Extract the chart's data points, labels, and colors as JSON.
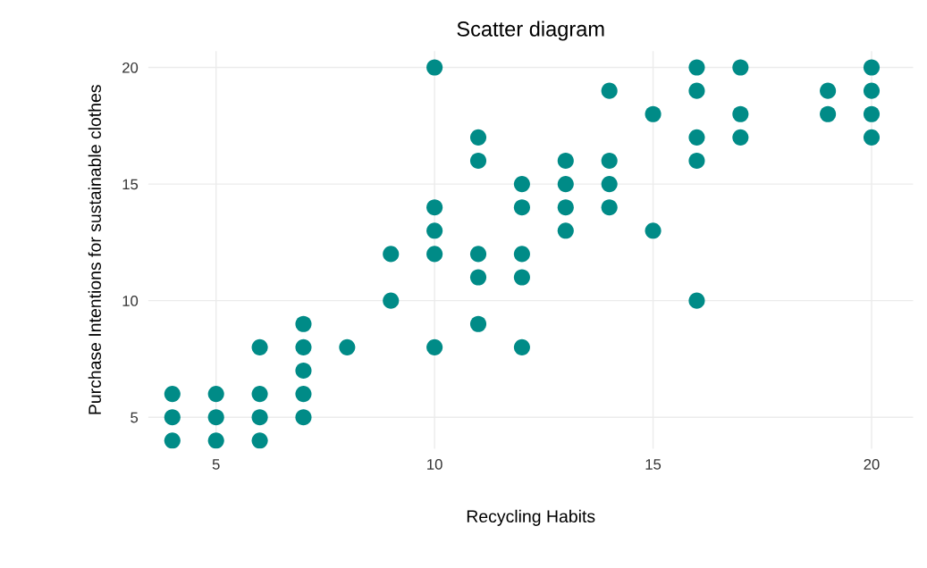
{
  "chart_data": {
    "type": "scatter",
    "title": "Scatter diagram",
    "xlabel": "Recycling Habits",
    "ylabel": "Purchase Intentions for sustainable clothes",
    "series": [
      {
        "color": "#008b87",
        "x": [
          4,
          4,
          4,
          5,
          5,
          5,
          6,
          6,
          6,
          6,
          7,
          7,
          7,
          7,
          7,
          8,
          9,
          9,
          10,
          10,
          10,
          10,
          10,
          11,
          11,
          11,
          11,
          11,
          12,
          12,
          12,
          12,
          12,
          13,
          13,
          13,
          13,
          14,
          14,
          14,
          14,
          15,
          15,
          16,
          16,
          16,
          16,
          16,
          17,
          17,
          17,
          19,
          19,
          20,
          20,
          20,
          20
        ],
        "values": [
          6,
          5,
          4,
          6,
          5,
          4,
          8,
          6,
          5,
          4,
          9,
          8,
          7,
          6,
          5,
          8,
          12,
          10,
          20,
          14,
          13,
          12,
          8,
          17,
          16,
          12,
          11,
          9,
          15,
          14,
          12,
          11,
          8,
          16,
          15,
          14,
          13,
          19,
          16,
          15,
          14,
          18,
          13,
          20,
          19,
          17,
          16,
          10,
          20,
          18,
          17,
          19,
          18,
          20,
          19,
          18,
          17
        ]
      }
    ],
    "xlim": [
      3.45,
      20.95
    ],
    "ylim": [
      3.65,
      20.7
    ],
    "xticks": [
      5,
      10,
      15,
      20
    ],
    "yticks": [
      5,
      10,
      15,
      20
    ],
    "grid": true,
    "marker": "circle"
  }
}
